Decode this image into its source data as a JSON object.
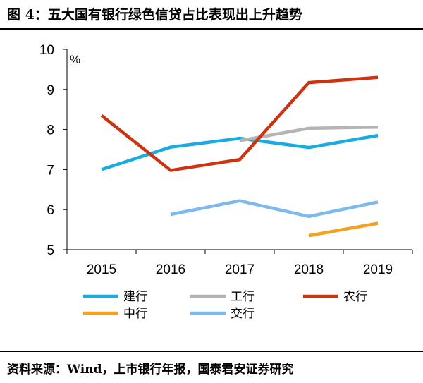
{
  "header": {
    "title": "图 4：五大国有银行绿色信贷占比表现出上升趋势"
  },
  "footer": {
    "source": "资料来源：Wind，上市银行年报，国泰君安证券研究"
  },
  "chart_data": {
    "type": "line",
    "title": "",
    "ylabel": "%",
    "xlabel": "",
    "categories": [
      "2015",
      "2016",
      "2017",
      "2018",
      "2019"
    ],
    "ylim": [
      5,
      10
    ],
    "yticks": [
      5,
      6,
      7,
      8,
      9,
      10
    ],
    "grid": false,
    "legend_position": "bottom",
    "series": [
      {
        "name": "建行",
        "color": "#1AACE0",
        "values": [
          7.0,
          7.56,
          7.78,
          7.55,
          7.85
        ]
      },
      {
        "name": "工行",
        "color": "#B4B4B4",
        "values": [
          null,
          null,
          7.72,
          8.03,
          8.06
        ]
      },
      {
        "name": "农行",
        "color": "#CC3311",
        "values": [
          8.35,
          6.98,
          7.25,
          9.17,
          9.3
        ]
      },
      {
        "name": "中行",
        "color": "#F5A020",
        "values": [
          null,
          null,
          null,
          5.35,
          5.66
        ]
      },
      {
        "name": "交行",
        "color": "#7DB9EE",
        "values": [
          null,
          5.88,
          6.22,
          5.83,
          6.19
        ]
      }
    ]
  }
}
